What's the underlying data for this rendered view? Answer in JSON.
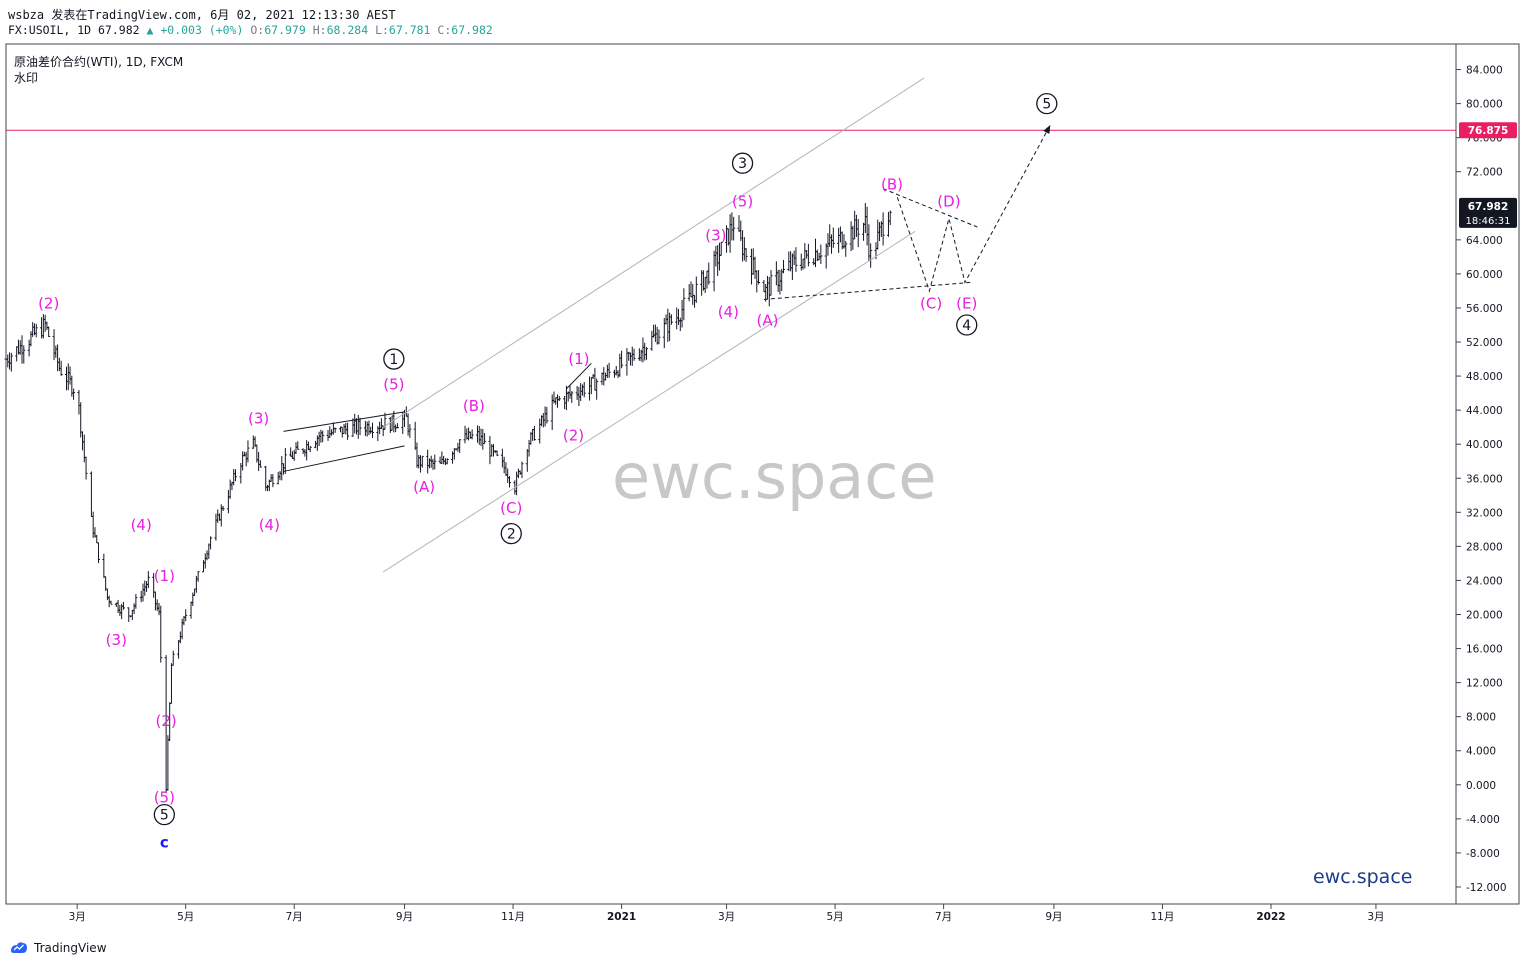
{
  "header": {
    "line1": "wsbza 发表在TradingView.com, 6月 02, 2021 12:13:30 AEST",
    "symbol_code": "FX:USOIL, 1D 67.982",
    "change": "▲ +0.003 (+0%)",
    "o_label": "O:",
    "o_value": "67.979",
    "h_label": "H:",
    "h_value": "68.284",
    "l_label": "L:",
    "l_value": "67.781",
    "c_label": "C:",
    "c_value": "67.982"
  },
  "symbol": {
    "name": "原油差价合约(WTI), 1D, FXCM",
    "indicator": "水印"
  },
  "watermark_center": "ewc.space",
  "watermark_corner": "ewc.space",
  "footer": {
    "brand": "TradingView"
  },
  "price_axis": {
    "ticks": [
      "84.000",
      "80.000",
      "76.000",
      "72.000",
      "64.000",
      "60.000",
      "56.000",
      "52.000",
      "48.000",
      "44.000",
      "40.000",
      "36.000",
      "32.000",
      "28.000",
      "24.000",
      "20.000",
      "16.000",
      "12.000",
      "8.000",
      "4.000",
      "0.000",
      "-4.000",
      "-8.000",
      "-12.000"
    ],
    "tick_values": [
      84,
      80,
      76,
      72,
      64,
      60,
      56,
      52,
      48,
      44,
      40,
      36,
      32,
      28,
      24,
      20,
      16,
      12,
      8,
      4,
      0,
      -4,
      -8,
      -12
    ],
    "hline_label": "76.875",
    "price_label": "67.982",
    "countdown_label": "18:46:31"
  },
  "time_axis": {
    "ticks": [
      "3月",
      "5月",
      "7月",
      "9月",
      "11月",
      "2021",
      "3月",
      "5月",
      "7月",
      "9月",
      "11月",
      "2022",
      "3月"
    ],
    "tick_dates": [
      "2020-03-01",
      "2020-05-01",
      "2020-07-01",
      "2020-09-01",
      "2020-11-01",
      "2021-01-01",
      "2021-03-01",
      "2021-05-01",
      "2021-07-01",
      "2021-09-01",
      "2021-11-01",
      "2022-01-01",
      "2022-03-01"
    ]
  },
  "colors": {
    "wave_label": "#e91ee0",
    "hline": "#e91e63",
    "axis_text": "#131722",
    "price_badge": "#131722",
    "candle": "#131722",
    "channel": "#b2b5be",
    "watermark": "#c8c8c8",
    "brand_blue": "#1e3a8a",
    "wave_c": "#1a1aff"
  },
  "chart_data": {
    "type": "bar",
    "title": "原油差价合约(WTI), 1D, FXCM",
    "ylabel": "",
    "xlabel": "",
    "ylim": [
      -14,
      87
    ],
    "xlim": [
      "2020-01-21",
      "2022-04-15"
    ],
    "grid": false,
    "horizontal_line": 76.875,
    "last_price": 67.982,
    "ohlc_last": {
      "open": 67.979,
      "high": 68.284,
      "low": 67.781,
      "close": 67.982
    },
    "price_path_dates": [
      "2020-01-21",
      "2020-02-01",
      "2020-02-12",
      "2020-02-20",
      "2020-03-01",
      "2020-03-09",
      "2020-03-18",
      "2020-03-30",
      "2020-04-10",
      "2020-04-16",
      "2020-04-20",
      "2020-04-23",
      "2020-05-01",
      "2020-05-15",
      "2020-06-01",
      "2020-06-08",
      "2020-06-15",
      "2020-06-26",
      "2020-07-15",
      "2020-08-05",
      "2020-08-26",
      "2020-09-02",
      "2020-09-08",
      "2020-09-21",
      "2020-10-02",
      "2020-10-12",
      "2020-10-28",
      "2020-11-02",
      "2020-11-09",
      "2020-11-25",
      "2020-12-15",
      "2021-01-06",
      "2021-02-01",
      "2021-02-22",
      "2021-03-05",
      "2021-03-08",
      "2021-03-23",
      "2021-04-06",
      "2021-05-03",
      "2021-05-18",
      "2021-05-21",
      "2021-06-01"
    ],
    "price_path_values": [
      50,
      52,
      54,
      49,
      46,
      31,
      22,
      20,
      24,
      20,
      0,
      14,
      20,
      29,
      38,
      40,
      35,
      38,
      41,
      42,
      42.5,
      43,
      38,
      37.5,
      40.5,
      41,
      37,
      35,
      40,
      45,
      47,
      50,
      55,
      61,
      66,
      64,
      58,
      61,
      64,
      66,
      62,
      68
    ],
    "waves": [
      {
        "label": "(2)",
        "date": "2020-02-14",
        "price": 56.5,
        "style": "magenta"
      },
      {
        "label": "(3)",
        "date": "2020-03-23",
        "price": 17,
        "style": "magenta"
      },
      {
        "label": "(4)",
        "date": "2020-04-06",
        "price": 30.5,
        "style": "magenta"
      },
      {
        "label": "(1)",
        "date": "2020-04-19",
        "price": 24.5,
        "style": "magenta"
      },
      {
        "label": "(2)",
        "date": "2020-04-20",
        "price": 7.5,
        "style": "magenta"
      },
      {
        "label": "(5)",
        "date": "2020-04-19",
        "price": -1.5,
        "style": "magenta"
      },
      {
        "label": "5",
        "date": "2020-04-19",
        "price": -3.5,
        "style": "circle"
      },
      {
        "label": "c",
        "date": "2020-04-19",
        "price": -6.8,
        "style": "blue"
      },
      {
        "label": "(3)",
        "date": "2020-06-11",
        "price": 43,
        "style": "magenta"
      },
      {
        "label": "(4)",
        "date": "2020-06-17",
        "price": 30.5,
        "style": "magenta"
      },
      {
        "label": "1",
        "date": "2020-08-26",
        "price": 50,
        "style": "circle"
      },
      {
        "label": "(5)",
        "date": "2020-08-26",
        "price": 47,
        "style": "magenta"
      },
      {
        "label": "(A)",
        "date": "2020-09-12",
        "price": 35,
        "style": "magenta"
      },
      {
        "label": "(B)",
        "date": "2020-10-10",
        "price": 44.5,
        "style": "magenta"
      },
      {
        "label": "(C)",
        "date": "2020-10-31",
        "price": 32.5,
        "style": "magenta"
      },
      {
        "label": "2",
        "date": "2020-10-31",
        "price": 29.5,
        "style": "circle"
      },
      {
        "label": "(1)",
        "date": "2020-12-08",
        "price": 50,
        "style": "magenta"
      },
      {
        "label": "(2)",
        "date": "2020-12-05",
        "price": 41,
        "style": "magenta"
      },
      {
        "label": "(3)",
        "date": "2021-02-23",
        "price": 64.5,
        "style": "magenta"
      },
      {
        "label": "(4)",
        "date": "2021-03-02",
        "price": 55.5,
        "style": "magenta"
      },
      {
        "label": "3",
        "date": "2021-03-10",
        "price": 73,
        "style": "circle"
      },
      {
        "label": "(5)",
        "date": "2021-03-10",
        "price": 68.5,
        "style": "magenta"
      },
      {
        "label": "(A)",
        "date": "2021-03-24",
        "price": 54.5,
        "style": "magenta"
      },
      {
        "label": "(B)",
        "date": "2021-06-02",
        "price": 70.5,
        "style": "magenta"
      },
      {
        "label": "(C)",
        "date": "2021-06-24",
        "price": 56.5,
        "style": "magenta"
      },
      {
        "label": "(D)",
        "date": "2021-07-04",
        "price": 68.5,
        "style": "magenta"
      },
      {
        "label": "(E)",
        "date": "2021-07-14",
        "price": 56.5,
        "style": "magenta"
      },
      {
        "label": "4",
        "date": "2021-07-14",
        "price": 54,
        "style": "circle"
      },
      {
        "label": "5",
        "date": "2021-08-28",
        "price": 80,
        "style": "circle"
      }
    ]
  }
}
